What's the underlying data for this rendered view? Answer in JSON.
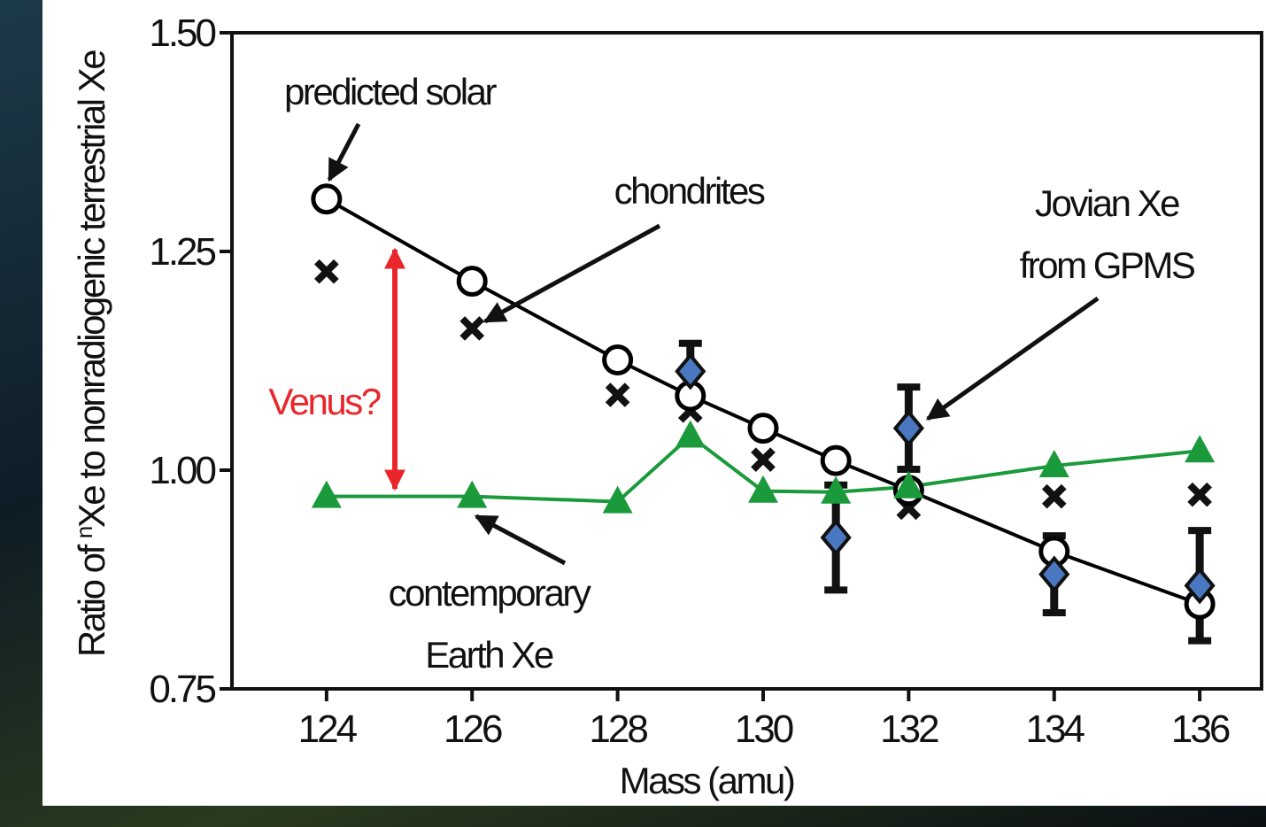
{
  "chart_data": {
    "type": "scatter",
    "x_label": "Mass (amu)",
    "y_label": {
      "prefix": "Ratio of ",
      "superscript": "n",
      "suffix": "Xe to nonradiogenic terrestrial Xe"
    },
    "xlim": [
      122.7,
      136.85
    ],
    "ylim": [
      0.75,
      1.5
    ],
    "xticks": [
      124,
      126,
      128,
      130,
      132,
      134,
      136
    ],
    "yticks": [
      0.75,
      {
        "value": 1,
        "label": "1.00"
      },
      1.25,
      {
        "value": 1.5,
        "label": "1.50"
      }
    ],
    "series": [
      {
        "marker": "circle-open",
        "line": true,
        "color": "#000000",
        "x": [
          124,
          126,
          128,
          129,
          130,
          131,
          132,
          134,
          136
        ],
        "values": [
          1.31,
          1.216,
          1.126,
          1.085,
          1.048,
          1.011,
          0.977,
          0.907,
          0.847
        ]
      },
      {
        "marker": "cross",
        "line": false,
        "color": "#111111",
        "x": [
          124,
          126,
          128,
          129,
          130,
          132,
          134,
          136
        ],
        "values": [
          1.227,
          1.162,
          1.086,
          1.068,
          1.012,
          0.957,
          0.97,
          0.972
        ]
      },
      {
        "marker": "triangle",
        "line": true,
        "color": "#1a9a3a",
        "x": [
          124,
          126,
          128,
          129,
          130,
          131,
          132,
          134,
          136
        ],
        "values": [
          0.97,
          0.97,
          0.964,
          1.039,
          0.976,
          0.975,
          0.981,
          1.005,
          1.022
        ]
      },
      {
        "marker": "diamond",
        "line": false,
        "color": "#4a78c0",
        "x": [
          129,
          131,
          132,
          134,
          136
        ],
        "values": [
          1.113,
          0.923,
          1.048,
          0.881,
          0.868
        ],
        "errors": [
          0.032,
          0.06,
          0.047,
          0.044,
          0.063
        ]
      }
    ],
    "annotations": {
      "predicted_solar": "predicted solar",
      "chondrites": "chondrites",
      "jovian_1": "Jovian Xe",
      "jovian_2": "from GPMS",
      "earth_1": "contemporary",
      "earth_2": "Earth Xe",
      "venus": "Venus?"
    }
  }
}
